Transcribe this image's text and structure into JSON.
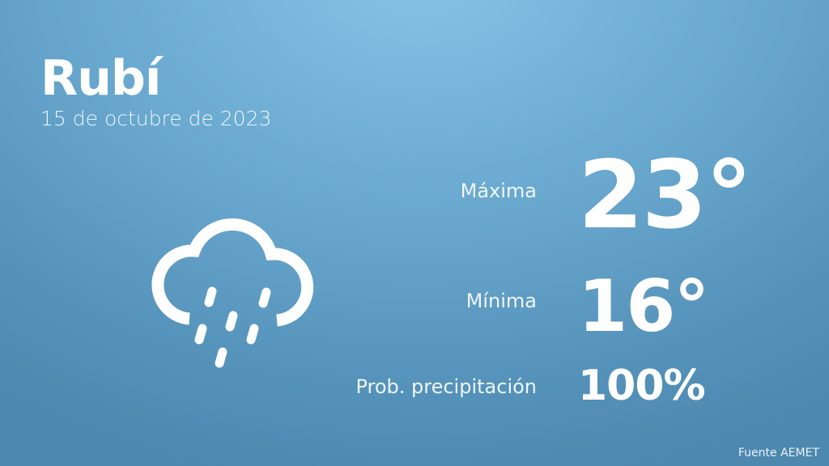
{
  "location": {
    "city": "Rubí",
    "date": "15 de octubre de 2023"
  },
  "weather_icon": "cloud-rain-icon",
  "stats": {
    "max_label": "Máxima",
    "max_value": "23°",
    "min_label": "Mínima",
    "min_value": "16°",
    "precip_label": "Prob. precipitación",
    "precip_value": "100%"
  },
  "source": "Fuente AEMET",
  "colors": {
    "background_top": "#86c4e6",
    "background_bottom": "#4d88ae",
    "text": "#ffffff"
  }
}
